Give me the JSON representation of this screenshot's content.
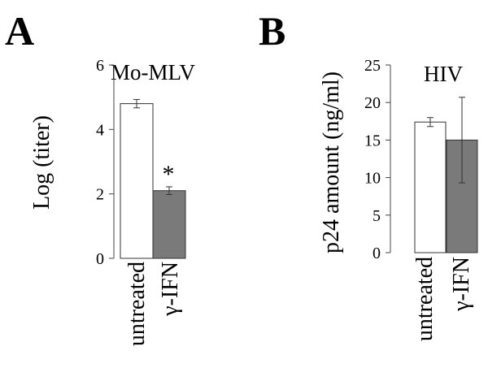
{
  "chart_data": [
    {
      "panel": "A",
      "type": "bar",
      "title": "Mo-MLV",
      "xlabel": "",
      "ylabel": "Log (titer)",
      "ylim": [
        0,
        6
      ],
      "yticks": [
        0,
        2,
        4,
        6
      ],
      "categories": [
        "untreated",
        "γ-IFN"
      ],
      "values": [
        4.8,
        2.1
      ],
      "errors": [
        0.13,
        0.12
      ],
      "bar_colors": [
        "#ffffff",
        "#7a7a7a"
      ],
      "annotations": [
        {
          "category": "γ-IFN",
          "text": "*"
        }
      ]
    },
    {
      "panel": "B",
      "type": "bar",
      "title": "HIV",
      "xlabel": "",
      "ylabel": "p24 amount (ng/ml)",
      "ylim": [
        0,
        25
      ],
      "yticks": [
        0,
        5,
        10,
        15,
        20,
        25
      ],
      "categories": [
        "untreated",
        "γ-IFN"
      ],
      "values": [
        17.4,
        15.0
      ],
      "errors": [
        0.6,
        5.7
      ],
      "bar_colors": [
        "#ffffff",
        "#7a7a7a"
      ],
      "annotations": []
    }
  ]
}
